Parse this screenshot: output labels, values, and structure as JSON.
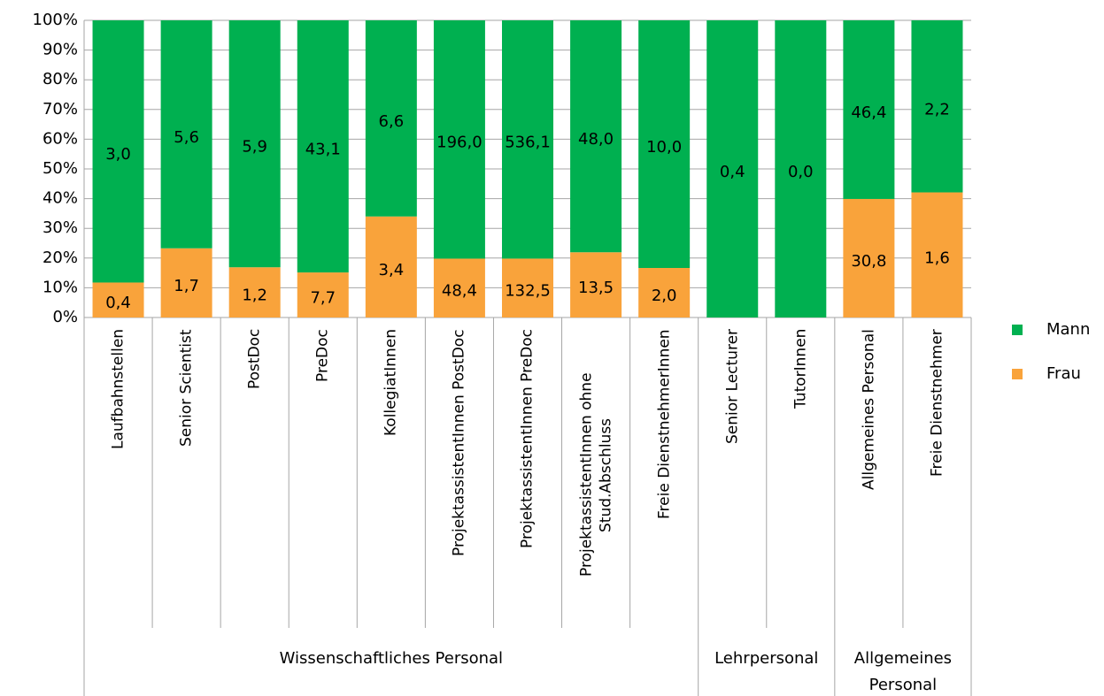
{
  "chart_data": {
    "type": "bar",
    "stacking": "percent",
    "groups": [
      {
        "label": "Wissenschaftliches Personal",
        "categories": [
          "Laufbahnstellen",
          "Senior Scientist",
          "PostDoc",
          "PreDoc",
          "KollegiatInnen",
          "ProjektassistentInnen PostDoc",
          "ProjektassistentInnen PreDoc",
          "ProjektassistentInnen ohne Stud.Abschluss",
          "Freie DienstnehmerInnen"
        ]
      },
      {
        "label": "Lehrpersonal",
        "categories": [
          "Senior Lecturer",
          "TutorInnen"
        ]
      },
      {
        "label": "Allgemeines Personal",
        "categories": [
          "Allgemeines Personal",
          "Freie Dienstnehmer"
        ]
      }
    ],
    "series": [
      {
        "name": "Frau",
        "color": "#f9a33b",
        "values": [
          0.4,
          1.7,
          1.2,
          7.7,
          3.4,
          48.4,
          132.5,
          13.5,
          2.0,
          null,
          null,
          30.8,
          1.6
        ],
        "value_labels": [
          "0,4",
          "1,7",
          "1,2",
          "7,7",
          "3,4",
          "48,4",
          "132,5",
          "13,5",
          "2,0",
          null,
          null,
          "30,8",
          "1,6"
        ]
      },
      {
        "name": "Mann",
        "color": "#00b050",
        "values": [
          3.0,
          5.6,
          5.9,
          43.1,
          6.6,
          196.0,
          536.1,
          48.0,
          10.0,
          0.4,
          0.0,
          46.4,
          2.2
        ],
        "value_labels": [
          "3,0",
          "5,6",
          "5,9",
          "43,1",
          "6,6",
          "196,0",
          "536,1",
          "48,0",
          "10,0",
          "0,4",
          "0,0",
          "46,4",
          "2,2"
        ]
      }
    ],
    "ylim": [
      0,
      100
    ],
    "yticks": [
      {
        "value": 0,
        "label": "0%"
      },
      {
        "value": 10,
        "label": "10%"
      },
      {
        "value": 20,
        "label": "20%"
      },
      {
        "value": 30,
        "label": "30%"
      },
      {
        "value": 40,
        "label": "40%"
      },
      {
        "value": 50,
        "label": "50%"
      },
      {
        "value": 60,
        "label": "60%"
      },
      {
        "value": 70,
        "label": "70%"
      },
      {
        "value": 80,
        "label": "80%"
      },
      {
        "value": 90,
        "label": "90%"
      },
      {
        "value": 100,
        "label": "100%"
      }
    ],
    "grid": true,
    "legend": "right"
  }
}
